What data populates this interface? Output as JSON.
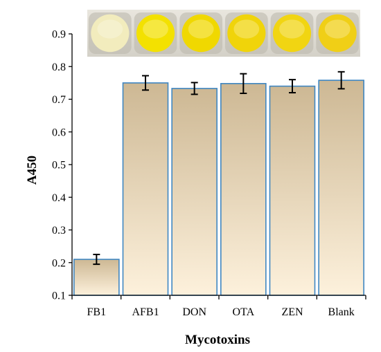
{
  "chart_data": {
    "type": "bar",
    "title": "",
    "xlabel": "Mycotoxins",
    "ylabel": "A450",
    "ylim": [
      0.1,
      0.9
    ],
    "yticks": [
      "0.1",
      "0.2",
      "0.3",
      "0.4",
      "0.5",
      "0.6",
      "0.7",
      "0.8",
      "0.9"
    ],
    "categories": [
      "FB1",
      "AFB1",
      "DON",
      "OTA",
      "ZEN",
      "Blank"
    ],
    "values": [
      0.21,
      0.75,
      0.733,
      0.748,
      0.74,
      0.758
    ],
    "errors": [
      0.015,
      0.022,
      0.018,
      0.03,
      0.02,
      0.026
    ],
    "grid": false,
    "legend": "none",
    "bar_fill_top": "#cdb894",
    "bar_fill_bottom": "#fdf1dc",
    "bar_stroke": "#3e86c2",
    "inset_photo": {
      "description_colors": [
        "#f2ecbd",
        "#f3e100",
        "#f0d800",
        "#f0d40a",
        "#f1d512",
        "#f0cf16"
      ]
    }
  }
}
